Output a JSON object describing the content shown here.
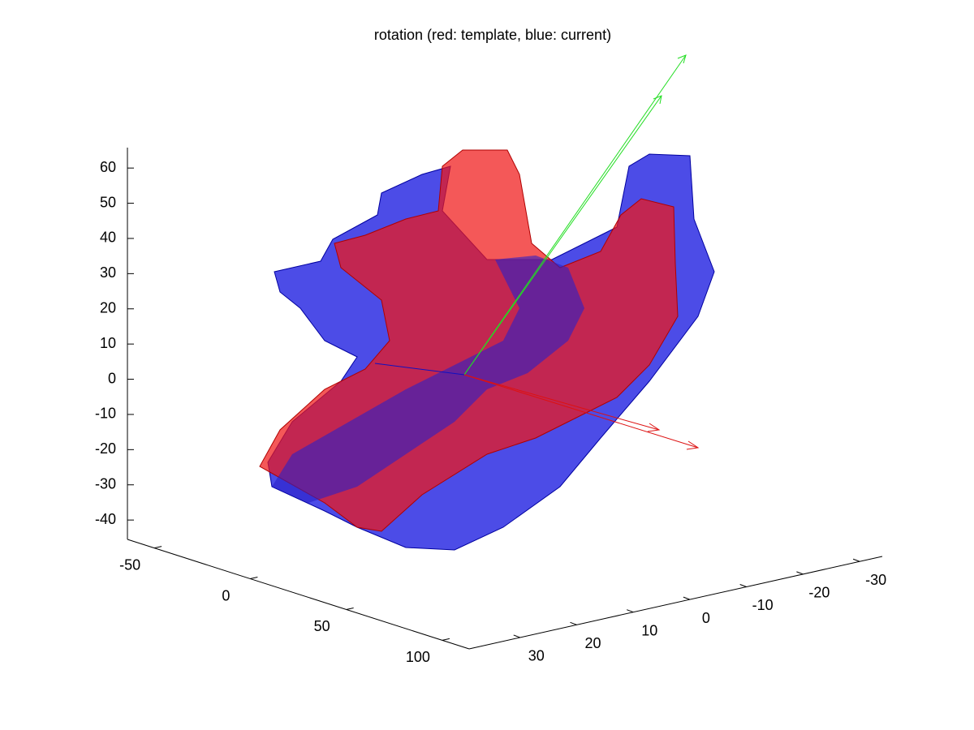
{
  "chart_data": {
    "type": "surface3d",
    "title": "rotation (red: template, blue: current)",
    "xlim": [
      -64,
      114
    ],
    "xticks": [
      -50,
      0,
      50,
      100
    ],
    "ylim": [
      39,
      -34
    ],
    "yticks": [
      30,
      20,
      10,
      0,
      -10,
      -20,
      -30
    ],
    "zlim": [
      -45.5,
      65.8
    ],
    "zticks": [
      60,
      50,
      40,
      30,
      20,
      10,
      0,
      -10,
      -20,
      -30,
      -40
    ]
  }
}
